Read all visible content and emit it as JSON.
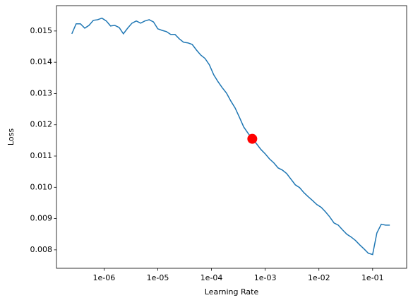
{
  "chart_data": {
    "type": "line",
    "x_label": "Learning Rate",
    "y_label": "Loss",
    "x": [
      2.51e-07,
      3.02e-07,
      3.63e-07,
      4.37e-07,
      5.25e-07,
      6.31e-07,
      7.59e-07,
      9.12e-07,
      1.1e-06,
      1.32e-06,
      1.58e-06,
      1.91e-06,
      2.29e-06,
      2.75e-06,
      3.31e-06,
      3.98e-06,
      4.79e-06,
      5.75e-06,
      6.92e-06,
      8.32e-06,
      1e-05,
      1.2e-05,
      1.45e-05,
      1.74e-05,
      2.09e-05,
      2.51e-05,
      3.02e-05,
      3.63e-05,
      4.37e-05,
      5.25e-05,
      6.31e-05,
      7.59e-05,
      9.12e-05,
      0.00011,
      0.000132,
      0.000158,
      0.000191,
      0.000229,
      0.000275,
      0.000331,
      0.000398,
      0.000479,
      0.000575,
      0.000692,
      0.000832,
      0.001,
      0.0012,
      0.00145,
      0.00174,
      0.00209,
      0.00251,
      0.00302,
      0.00363,
      0.00437,
      0.00525,
      0.00631,
      0.00759,
      0.00912,
      0.011,
      0.0132,
      0.0158,
      0.0191,
      0.0229,
      0.0275,
      0.0331,
      0.0398,
      0.0479,
      0.0575,
      0.0692,
      0.0832,
      0.1,
      0.12,
      0.145,
      0.174,
      0.209
    ],
    "series": [
      {
        "color": "#1f77b4",
        "values": [
          0.01491,
          0.01523,
          0.01523,
          0.01509,
          0.01518,
          0.01534,
          0.01536,
          0.01541,
          0.01532,
          0.01516,
          0.01518,
          0.01511,
          0.01491,
          0.01509,
          0.01525,
          0.01532,
          0.01525,
          0.01532,
          0.01536,
          0.01529,
          0.01507,
          0.01502,
          0.01498,
          0.01489,
          0.01489,
          0.01475,
          0.01464,
          0.01462,
          0.01457,
          0.01439,
          0.01423,
          0.01412,
          0.01392,
          0.0136,
          0.01338,
          0.01319,
          0.01301,
          0.01276,
          0.01254,
          0.01224,
          0.01193,
          0.01173,
          0.01155,
          0.01139,
          0.01121,
          0.01107,
          0.01091,
          0.01078,
          0.01062,
          0.01055,
          0.01044,
          0.01026,
          0.01008,
          0.00999,
          0.00983,
          0.0097,
          0.00958,
          0.00945,
          0.00936,
          0.00922,
          0.00906,
          0.00886,
          0.00879,
          0.00864,
          0.0085,
          0.00841,
          0.0083,
          0.00816,
          0.00803,
          0.00789,
          0.00785,
          0.00854,
          0.00882,
          0.00879,
          0.00879
        ]
      }
    ],
    "marker": {
      "x": 0.000575,
      "y": 0.01155,
      "color": "#ff0000"
    },
    "xscale": "log",
    "xlim": [
      1.3e-07,
      0.43
    ],
    "ylim": [
      0.00741,
      0.01581
    ],
    "xticks": [
      {
        "value": 1e-06,
        "label": "1e-06"
      },
      {
        "value": 1e-05,
        "label": "1e-05"
      },
      {
        "value": 0.0001,
        "label": "1e-04"
      },
      {
        "value": 0.001,
        "label": "1e-03"
      },
      {
        "value": 0.01,
        "label": "1e-02"
      },
      {
        "value": 0.1,
        "label": "1e-01"
      }
    ],
    "yticks": [
      0.008,
      0.009,
      {
        "value": 0.01,
        "label": "0.010"
      },
      0.011,
      0.012,
      0.013,
      0.014,
      0.015
    ]
  }
}
